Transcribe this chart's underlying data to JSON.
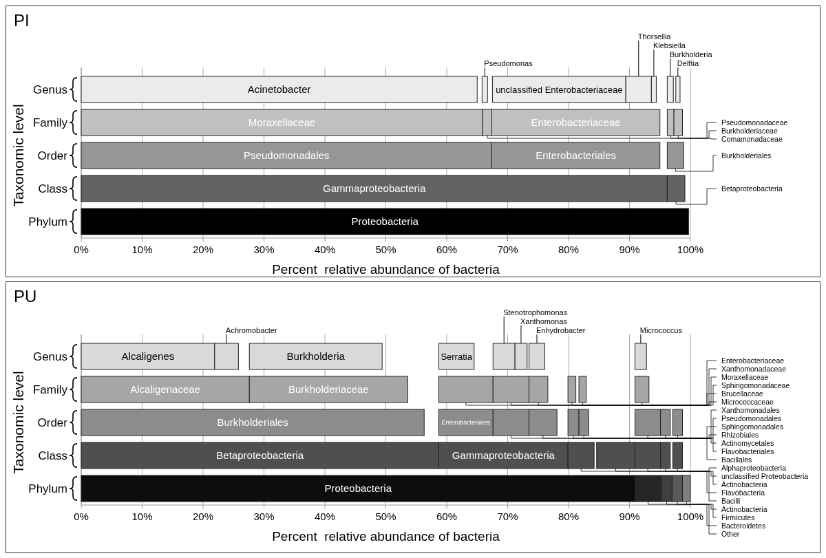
{
  "chart_data": [
    {
      "type": "bar",
      "orientation": "horizontal",
      "title": "PI",
      "xlabel": "Percent  relative abundance of bacteria",
      "ylabel": "Taxonomic level",
      "categories": [
        "Genus",
        "Family",
        "Order",
        "Class",
        "Phylum"
      ],
      "xlim": [
        0,
        100
      ],
      "xticks": [
        {
          "value": 0,
          "label": "0%"
        },
        {
          "value": 10,
          "label": "10%"
        },
        {
          "value": 20,
          "label": "20%"
        },
        {
          "value": 30,
          "label": "30%"
        },
        {
          "value": 40,
          "label": "40%"
        },
        {
          "value": 50,
          "label": "50%"
        },
        {
          "value": 60,
          "label": "60%"
        },
        {
          "value": 70,
          "label": "70%"
        },
        {
          "value": 80,
          "label": "80%"
        },
        {
          "value": 90,
          "label": "90%"
        },
        {
          "value": 100,
          "label": "100%"
        }
      ],
      "grid": "x",
      "series": [
        {
          "name": "Acinetobacter",
          "color": "#ebebeb",
          "values": [
            65,
            null,
            null,
            null,
            null
          ],
          "base": [
            0,
            null,
            null,
            null,
            null
          ]
        },
        {
          "name": "Pseudomonas",
          "color": "#ebebeb",
          "values": [
            0.9,
            null,
            null,
            null,
            null
          ],
          "base": [
            65.8,
            null,
            null,
            null,
            null
          ]
        },
        {
          "name": "unclassified Enterobacteriaceae",
          "color": "#ebebeb",
          "values": [
            21.9,
            null,
            null,
            null,
            null
          ],
          "base": [
            67.5,
            null,
            null,
            null,
            null
          ]
        },
        {
          "name": "Thorsellia",
          "color": "#ebebeb",
          "values": [
            4.2,
            null,
            null,
            null,
            null
          ],
          "base": [
            89.4,
            null,
            null,
            null,
            null
          ]
        },
        {
          "name": "Klebsiella",
          "color": "#ebebeb",
          "values": [
            0.8,
            null,
            null,
            null,
            null
          ],
          "base": [
            93.6,
            null,
            null,
            null,
            null
          ]
        },
        {
          "name": "Burkholderia",
          "color": "#ebebeb",
          "values": [
            1.0,
            null,
            null,
            null,
            null
          ],
          "base": [
            96.2,
            null,
            null,
            null,
            null
          ]
        },
        {
          "name": "Delftia",
          "color": "#ebebeb",
          "values": [
            0.7,
            null,
            null,
            null,
            null
          ],
          "base": [
            97.6,
            null,
            null,
            null,
            null
          ]
        },
        {
          "name": "Moraxellaceae",
          "color": "#c0c0c0",
          "values": [
            null,
            65.9,
            null,
            null,
            null
          ],
          "base": [
            null,
            0,
            null,
            null,
            null
          ]
        },
        {
          "name": "Pseudomonadaceae",
          "color": "#c0c0c0",
          "values": [
            null,
            1.5,
            null,
            null,
            null
          ],
          "base": [
            null,
            65.9,
            null,
            null,
            null
          ]
        },
        {
          "name": "Enterobacteriaceae",
          "color": "#c0c0c0",
          "values": [
            null,
            27.6,
            null,
            null,
            null
          ],
          "base": [
            null,
            67.4,
            null,
            null,
            null
          ]
        },
        {
          "name": "Burkholderiaceae",
          "color": "#c0c0c0",
          "values": [
            null,
            1.1,
            null,
            null,
            null
          ],
          "base": [
            null,
            96.2,
            null,
            null,
            null
          ]
        },
        {
          "name": "Comamonadaceae",
          "color": "#c0c0c0",
          "values": [
            null,
            1.4,
            null,
            null,
            null
          ],
          "base": [
            null,
            97.3,
            null,
            null,
            null
          ]
        },
        {
          "name": "Pseudomonadales",
          "color": "#969696",
          "values": [
            null,
            null,
            67.4,
            null,
            null
          ],
          "base": [
            null,
            null,
            0,
            null,
            null
          ]
        },
        {
          "name": "Enterobacteriales",
          "color": "#969696",
          "values": [
            null,
            null,
            27.6,
            null,
            null
          ],
          "base": [
            null,
            null,
            67.4,
            null,
            null
          ]
        },
        {
          "name": "Burkholderiales",
          "color": "#969696",
          "values": [
            null,
            null,
            2.7,
            null,
            null
          ],
          "base": [
            null,
            null,
            96.2,
            null,
            null
          ]
        },
        {
          "name": "Gammaproteobacteria",
          "color": "#636363",
          "values": [
            null,
            null,
            null,
            96.2,
            null
          ],
          "base": [
            null,
            null,
            null,
            0,
            null
          ]
        },
        {
          "name": "Betaproteobacteria",
          "color": "#636363",
          "values": [
            null,
            null,
            null,
            2.9,
            null
          ],
          "base": [
            null,
            null,
            null,
            96.2,
            null
          ]
        },
        {
          "name": "Proteobacteria",
          "color": "#000000",
          "values": [
            null,
            null,
            null,
            null,
            99.7
          ],
          "base": [
            null,
            null,
            null,
            null,
            0
          ]
        }
      ]
    },
    {
      "type": "bar",
      "orientation": "horizontal",
      "title": "PU",
      "xlabel": "Percent  relative abundance of bacteria",
      "ylabel": "Taxonomic level",
      "categories": [
        "Genus",
        "Family",
        "Order",
        "Class",
        "Phylum"
      ],
      "xlim": [
        0,
        100
      ],
      "xticks": [
        {
          "value": 0,
          "label": "0%"
        },
        {
          "value": 10,
          "label": "10%"
        },
        {
          "value": 20,
          "label": "20%"
        },
        {
          "value": 30,
          "label": "30%"
        },
        {
          "value": 40,
          "label": "40%"
        },
        {
          "value": 50,
          "label": "50%"
        },
        {
          "value": 60,
          "label": "60%"
        },
        {
          "value": 70,
          "label": "70%"
        },
        {
          "value": 80,
          "label": "80%"
        },
        {
          "value": 90,
          "label": "90%"
        },
        {
          "value": 100,
          "label": "100%"
        }
      ],
      "grid": "x",
      "series": [
        {
          "name": "Alcaligenes",
          "color": "#d9d9d9",
          "values": [
            21.9,
            null,
            null,
            null,
            null
          ],
          "base": [
            0,
            null,
            null,
            null,
            null
          ]
        },
        {
          "name": "Achromobacter",
          "color": "#d9d9d9",
          "values": [
            3.9,
            null,
            null,
            null,
            null
          ],
          "base": [
            21.9,
            null,
            null,
            null,
            null
          ]
        },
        {
          "name": "Burkholderia",
          "color": "#d9d9d9",
          "values": [
            21.8,
            null,
            null,
            null,
            null
          ],
          "base": [
            27.6,
            null,
            null,
            null,
            null
          ]
        },
        {
          "name": "Serratia",
          "color": "#d9d9d9",
          "values": [
            5.8,
            null,
            null,
            null,
            null
          ],
          "base": [
            58.7,
            null,
            null,
            null,
            null
          ]
        },
        {
          "name": "Stenotrophomonas",
          "color": "#d9d9d9",
          "values": [
            3.6,
            null,
            null,
            null,
            null
          ],
          "base": [
            67.6,
            null,
            null,
            null,
            null
          ]
        },
        {
          "name": "Xanthomonas",
          "color": "#d9d9d9",
          "values": [
            2.0,
            null,
            null,
            null,
            null
          ],
          "base": [
            71.2,
            null,
            null,
            null,
            null
          ]
        },
        {
          "name": "Enhydrobacter",
          "color": "#d9d9d9",
          "values": [
            2.6,
            null,
            null,
            null,
            null
          ],
          "base": [
            73.5,
            null,
            null,
            null,
            null
          ]
        },
        {
          "name": "Micrococcus",
          "color": "#d9d9d9",
          "values": [
            1.9,
            null,
            null,
            null,
            null
          ],
          "base": [
            90.9,
            null,
            null,
            null,
            null
          ]
        },
        {
          "name": "Alcaligenaceae",
          "color": "#a6a6a6",
          "values": [
            null,
            27.6,
            null,
            null,
            null
          ],
          "base": [
            null,
            0,
            null,
            null,
            null
          ]
        },
        {
          "name": "Burkholderiaceae",
          "color": "#a6a6a6",
          "values": [
            null,
            26.0,
            null,
            null,
            null
          ],
          "base": [
            null,
            27.6,
            null,
            null,
            null
          ]
        },
        {
          "name": "Enterobacteriaceae",
          "color": "#a6a6a6",
          "values": [
            null,
            8.9,
            null,
            null,
            null
          ],
          "base": [
            null,
            58.7,
            null,
            null,
            null
          ]
        },
        {
          "name": "Xanthomonadaceae",
          "color": "#a6a6a6",
          "values": [
            null,
            5.9,
            null,
            null,
            null
          ],
          "base": [
            null,
            67.6,
            null,
            null,
            null
          ]
        },
        {
          "name": "Moraxellaceae",
          "color": "#a6a6a6",
          "values": [
            null,
            3.1,
            null,
            null,
            null
          ],
          "base": [
            null,
            73.5,
            null,
            null,
            null
          ]
        },
        {
          "name": "Sphingomonadaceae",
          "color": "#a6a6a6",
          "values": [
            null,
            1.3,
            null,
            null,
            null
          ],
          "base": [
            null,
            79.9,
            null,
            null,
            null
          ]
        },
        {
          "name": "Brucellaceae",
          "color": "#a6a6a6",
          "values": [
            null,
            1.2,
            null,
            null,
            null
          ],
          "base": [
            null,
            81.7,
            null,
            null,
            null
          ]
        },
        {
          "name": "Micrococcaceae",
          "color": "#a6a6a6",
          "values": [
            null,
            2.3,
            null,
            null,
            null
          ],
          "base": [
            null,
            90.9,
            null,
            null,
            null
          ]
        },
        {
          "name": "Burkholderiales",
          "color": "#8c8c8c",
          "values": [
            null,
            null,
            56.3,
            null,
            null
          ],
          "base": [
            null,
            null,
            0,
            null,
            null
          ]
        },
        {
          "name": "Enterobacteriales",
          "color": "#8c8c8c",
          "values": [
            null,
            null,
            8.9,
            null,
            null
          ],
          "base": [
            null,
            null,
            58.7,
            null,
            null
          ]
        },
        {
          "name": "Xanthomonadales",
          "color": "#8c8c8c",
          "values": [
            null,
            null,
            5.9,
            null,
            null
          ],
          "base": [
            null,
            null,
            67.6,
            null,
            null
          ]
        },
        {
          "name": "Pseudomonadales",
          "color": "#8c8c8c",
          "values": [
            null,
            null,
            4.6,
            null,
            null
          ],
          "base": [
            null,
            null,
            73.5,
            null,
            null
          ]
        },
        {
          "name": "Sphingomonadales",
          "color": "#8c8c8c",
          "values": [
            null,
            null,
            1.8,
            null,
            null
          ],
          "base": [
            null,
            null,
            79.9,
            null,
            null
          ]
        },
        {
          "name": "Rhizobiales",
          "color": "#8c8c8c",
          "values": [
            null,
            null,
            1.6,
            null,
            null
          ],
          "base": [
            null,
            null,
            81.7,
            null,
            null
          ]
        },
        {
          "name": "Actinomycetales",
          "color": "#8c8c8c",
          "values": [
            null,
            null,
            4.2,
            null,
            null
          ],
          "base": [
            null,
            null,
            90.9,
            null,
            null
          ]
        },
        {
          "name": "Flavobacteriales",
          "color": "#8c8c8c",
          "values": [
            null,
            null,
            1.6,
            null,
            null
          ],
          "base": [
            null,
            null,
            95.1,
            null,
            null
          ]
        },
        {
          "name": "Bacillales",
          "color": "#8c8c8c",
          "values": [
            null,
            null,
            1.6,
            null,
            null
          ],
          "base": [
            null,
            null,
            97.1,
            null,
            null
          ]
        },
        {
          "name": "Betaproteobacteria",
          "color": "#4f4f4f",
          "values": [
            null,
            null,
            null,
            58.7,
            null
          ],
          "base": [
            null,
            null,
            null,
            0,
            null
          ]
        },
        {
          "name": "Gammaproteobacteria",
          "color": "#4f4f4f",
          "values": [
            null,
            null,
            null,
            21.2,
            null
          ],
          "base": [
            null,
            null,
            null,
            58.7,
            null
          ]
        },
        {
          "name": "Alphaproteobacteria",
          "color": "#4f4f4f",
          "values": [
            null,
            null,
            null,
            4.3,
            null
          ],
          "base": [
            null,
            null,
            null,
            79.9,
            null
          ]
        },
        {
          "name": "unclassified Proteobacteria",
          "color": "#4f4f4f",
          "values": [
            null,
            null,
            null,
            6.3,
            null
          ],
          "base": [
            null,
            null,
            null,
            84.6,
            null
          ]
        },
        {
          "name": "Actinobacteria",
          "color": "#4f4f4f",
          "values": [
            null,
            null,
            null,
            4.2,
            null
          ],
          "base": [
            null,
            null,
            null,
            90.9,
            null
          ]
        },
        {
          "name": "Flavobacteria",
          "color": "#4f4f4f",
          "values": [
            null,
            null,
            null,
            1.6,
            null
          ],
          "base": [
            null,
            null,
            null,
            95.1,
            null
          ]
        },
        {
          "name": "Bacilli",
          "color": "#4f4f4f",
          "values": [
            null,
            null,
            null,
            1.6,
            null
          ],
          "base": [
            null,
            null,
            null,
            97.1,
            null
          ]
        },
        {
          "name": "Proteobacteria",
          "color": "#0d0d0d",
          "values": [
            null,
            null,
            null,
            null,
            90.9
          ],
          "base": [
            null,
            null,
            null,
            null,
            0
          ]
        },
        {
          "name": "Actinobacteria",
          "color": "#262626",
          "values": [
            null,
            null,
            null,
            null,
            4.3
          ],
          "base": [
            null,
            null,
            null,
            null,
            90.9
          ]
        },
        {
          "name": "Firmicutes",
          "color": "#3f3f3f",
          "values": [
            null,
            null,
            null,
            null,
            1.8
          ],
          "base": [
            null,
            null,
            null,
            null,
            95.2
          ]
        },
        {
          "name": "Bacteroidetes",
          "color": "#595959",
          "values": [
            null,
            null,
            null,
            null,
            1.7
          ],
          "base": [
            null,
            null,
            null,
            null,
            97.0
          ]
        },
        {
          "name": "Other",
          "color": "#7f7f7f",
          "values": [
            null,
            null,
            null,
            null,
            1.3
          ],
          "base": [
            null,
            null,
            null,
            null,
            98.7
          ]
        }
      ]
    }
  ]
}
